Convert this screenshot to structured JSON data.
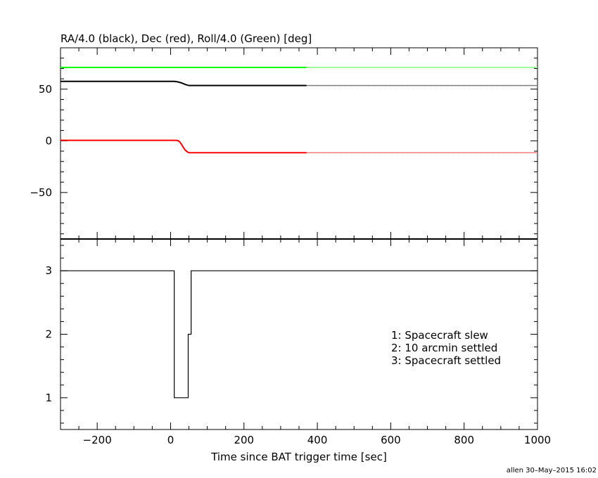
{
  "chart_data": [
    {
      "type": "line",
      "title": "RA/4.0 (black), Dec (red), Roll/4.0 (Green) [deg]",
      "xlim": [
        -300,
        1000
      ],
      "ylim": [
        -95,
        90
      ],
      "yticks": [
        -50,
        0,
        50
      ],
      "ytick_labels": [
        "−50",
        "0",
        "50"
      ],
      "grid": false,
      "series": [
        {
          "color": "#000000",
          "x": [
            -300,
            0,
            10,
            20,
            30,
            40,
            50,
            370
          ],
          "y": [
            57.5,
            57.5,
            57.5,
            57.0,
            56.0,
            54.5,
            53.5,
            53.5
          ],
          "extended_to": 1000
        },
        {
          "color": "#ff0000",
          "x": [
            -300,
            0,
            10,
            20,
            25,
            30,
            35,
            40,
            45,
            50,
            370
          ],
          "y": [
            0.5,
            0.5,
            0.5,
            0.3,
            -1.0,
            -3.5,
            -6.5,
            -9.0,
            -10.5,
            -11.5,
            -11.5
          ],
          "extended_to": 1000
        },
        {
          "color": "#00ff00",
          "x": [
            -300,
            370
          ],
          "y": [
            71,
            71
          ],
          "extended_to": 1000
        }
      ]
    },
    {
      "type": "line",
      "xlabel": "Time since BAT trigger time [sec]",
      "xlim": [
        -300,
        1000
      ],
      "ylim": [
        0.5,
        3.5
      ],
      "xticks": [
        -200,
        0,
        200,
        400,
        600,
        800,
        1000
      ],
      "xtick_labels": [
        "−200",
        "0",
        "200",
        "400",
        "600",
        "800",
        "1000"
      ],
      "yticks": [
        1,
        2,
        3
      ],
      "ytick_labels": [
        "1",
        "2",
        "3"
      ],
      "grid": false,
      "annotations": [
        "1: Spacecraft slew",
        "2: 10 arcmin settled",
        "3: Spacecraft settled"
      ],
      "series": [
        {
          "color": "#000000",
          "x": [
            -300,
            10,
            10,
            48,
            48,
            56,
            56,
            1000
          ],
          "y": [
            3,
            3,
            1,
            1,
            2,
            2,
            3,
            3
          ]
        }
      ]
    }
  ],
  "credit": "allen 30–May–2015 16:02"
}
